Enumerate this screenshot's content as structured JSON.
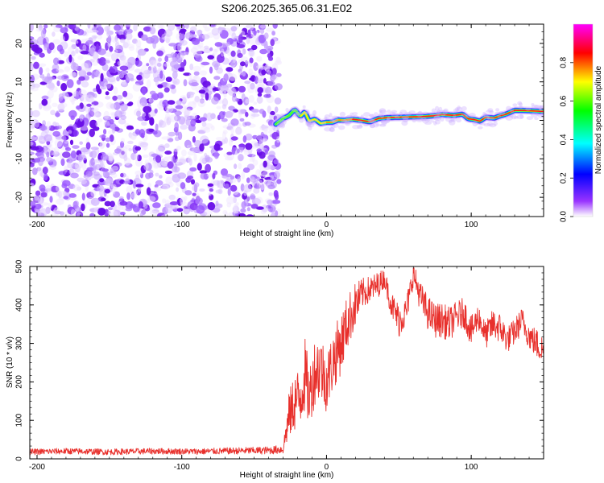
{
  "title": "S206.2025.365.06.31.E02",
  "chart_data": [
    {
      "type": "heatmap",
      "xlabel": "Height of straight line (km)",
      "ylabel": "Frequency (Hz)",
      "xlim": [
        -205,
        150
      ],
      "ylim": [
        -25,
        25
      ],
      "xticks": [
        -200,
        -100,
        0,
        100
      ],
      "yticks": [
        -20,
        -10,
        0,
        10,
        20
      ],
      "noise_region_x": [
        -205,
        -35
      ],
      "ridge": {
        "x": [
          -35,
          -30,
          -26,
          -22,
          -18,
          -15,
          -12,
          -8,
          -4,
          0,
          4,
          8,
          12,
          18,
          24,
          30,
          36,
          42,
          50,
          60,
          68,
          74,
          80,
          88,
          94,
          98,
          102,
          106,
          110,
          116,
          120,
          124,
          130,
          140,
          150
        ],
        "y": [
          -1,
          0.5,
          1.2,
          2.8,
          1.0,
          2.2,
          -0.2,
          0.3,
          -0.8,
          -0.5,
          -0.5,
          0.1,
          0.0,
          0.3,
          0.0,
          -0.4,
          0.5,
          0.7,
          0.8,
          0.9,
          1.0,
          1.2,
          1.5,
          1.3,
          1.6,
          0.4,
          0.2,
          -0.2,
          0.8,
          0.6,
          1.2,
          1.6,
          2.6,
          2.5,
          2.3
        ],
        "amplitude": [
          0.2,
          0.35,
          0.4,
          0.5,
          0.55,
          0.6,
          0.65,
          0.7,
          0.72,
          0.75,
          0.8,
          0.85,
          0.88,
          0.9,
          0.95,
          0.97,
          1.0,
          1.0,
          1.0,
          1.0,
          1.0,
          0.98,
          1.0,
          1.0,
          0.95,
          0.9,
          0.92,
          0.95,
          0.95,
          1.0,
          1.0,
          1.0,
          1.0,
          1.0,
          0.95
        ]
      },
      "colorbar": {
        "label": "Normalized spectral amplitude",
        "range": [
          0,
          1
        ],
        "ticks": [
          "0.0",
          "0.2",
          "0.4",
          "0.6",
          "0.8"
        ],
        "colormap": [
          "#ffffff",
          "#8000ff",
          "#0000ff",
          "#00ffff",
          "#00ff00",
          "#ffff00",
          "#ff0000",
          "#ff00ff"
        ]
      }
    },
    {
      "type": "line",
      "xlabel": "Height of straight line (km)",
      "ylabel": "SNR (10 * v/v)",
      "xlim": [
        -205,
        150
      ],
      "ylim": [
        0,
        500
      ],
      "xticks": [
        -200,
        -100,
        0,
        100
      ],
      "yticks": [
        0,
        100,
        200,
        300,
        400,
        500
      ],
      "series": [
        {
          "color": "#e8302c",
          "x": [
            -205,
            -180,
            -150,
            -120,
            -90,
            -60,
            -40,
            -30,
            -26,
            -22,
            -18,
            -15,
            -12,
            -8,
            -4,
            0,
            5,
            10,
            15,
            20,
            25,
            30,
            35,
            40,
            45,
            50,
            55,
            60,
            65,
            70,
            75,
            80,
            85,
            90,
            95,
            100,
            105,
            110,
            115,
            120,
            125,
            130,
            135,
            140,
            145,
            150
          ],
          "y": [
            18,
            20,
            18,
            20,
            19,
            21,
            22,
            25,
            110,
            150,
            160,
            220,
            160,
            230,
            240,
            200,
            260,
            300,
            360,
            400,
            430,
            440,
            450,
            470,
            400,
            360,
            380,
            480,
            420,
            380,
            360,
            360,
            350,
            370,
            380,
            330,
            370,
            320,
            350,
            340,
            310,
            330,
            360,
            320,
            300,
            280
          ],
          "noise": [
            8,
            8,
            8,
            8,
            8,
            9,
            10,
            12,
            60,
            80,
            80,
            100,
            80,
            90,
            90,
            80,
            80,
            80,
            70,
            60,
            40,
            35,
            35,
            25,
            35,
            45,
            40,
            30,
            40,
            45,
            45,
            45,
            45,
            40,
            40,
            40,
            35,
            35,
            40,
            40,
            35,
            35,
            35,
            35,
            40,
            40
          ]
        }
      ]
    }
  ]
}
